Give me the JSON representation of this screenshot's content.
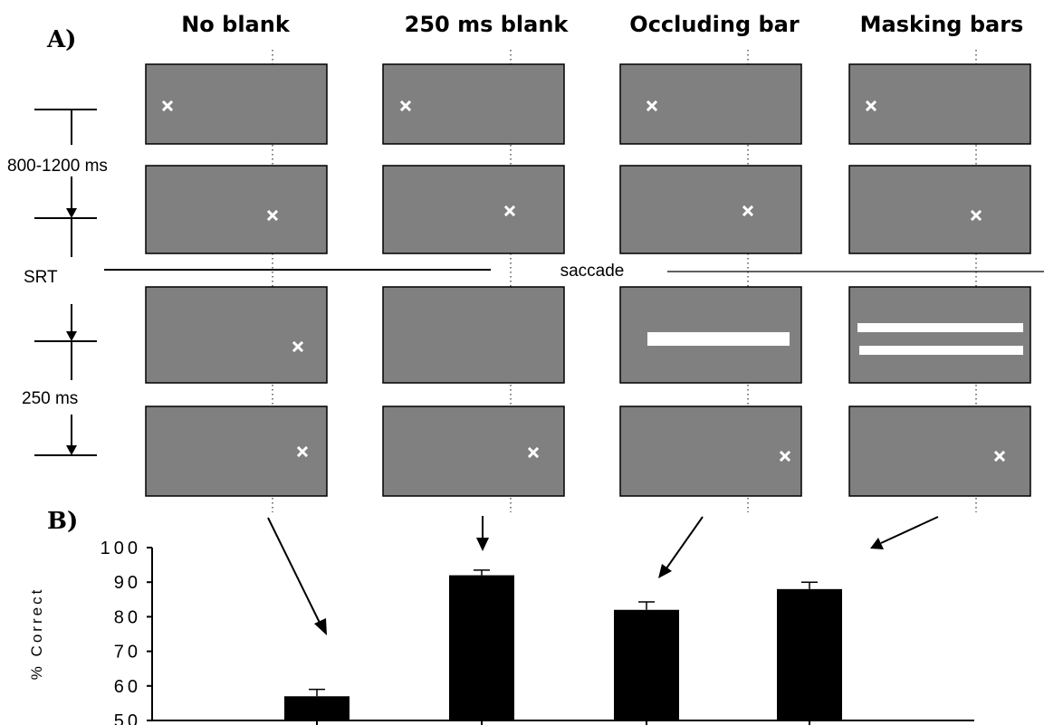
{
  "panel_a": {
    "letter": "A)",
    "columns": [
      {
        "title": "No blank",
        "row3": "target"
      },
      {
        "title": "250 ms blank",
        "row3": "blank"
      },
      {
        "title": "Occluding bar",
        "row3": "occluding-bar"
      },
      {
        "title": "Masking bars",
        "row3": "masking-bars"
      }
    ],
    "timeline": {
      "interval_1": "800-1200 ms",
      "srt": "SRT",
      "saccade": "saccade",
      "interval_2": "250 ms"
    }
  },
  "panel_b": {
    "letter": "B)"
  },
  "chart_data": {
    "type": "bar",
    "categories": [
      "No blank",
      "250 ms blank",
      "Occluding bar",
      "Masking bars"
    ],
    "values": [
      57,
      92,
      82,
      88
    ],
    "errors": [
      2,
      1.5,
      2.3,
      2
    ],
    "ylabel": "% Correct",
    "ylim": [
      50,
      100
    ],
    "yticks": [
      "50",
      "60",
      "70",
      "80",
      "90",
      "100"
    ],
    "bar_color": "#000000",
    "error_bars": true,
    "grid": false
  },
  "colors": {
    "screen": "#808080",
    "stimulus": "#ffffff"
  }
}
